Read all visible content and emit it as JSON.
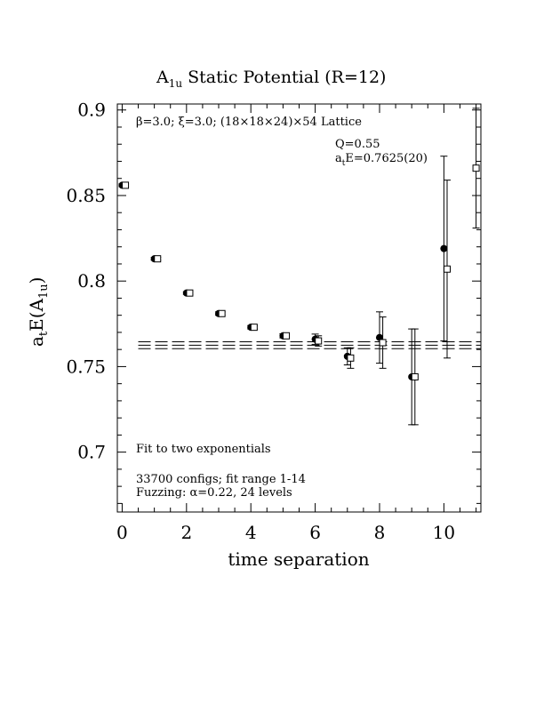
{
  "chart_data": {
    "type": "scatter",
    "title": "A1u Static Potential (R=12)",
    "title_parts": {
      "base": "A",
      "sub": "1u",
      "rest": " Static Potential (R=12)"
    },
    "xlabel": "time separation",
    "ylabel_parts": {
      "a": "a",
      "t_sub": "t",
      "E": "E(A",
      "sub": "1u",
      "close": ")"
    },
    "xlim": [
      -0.15,
      11.15
    ],
    "ylim": [
      0.665,
      0.9035
    ],
    "x_ticks": [
      0,
      2,
      4,
      6,
      8,
      10
    ],
    "x_tick_labels": [
      "0",
      "2",
      "4",
      "6",
      "8",
      "10"
    ],
    "y_ticks": [
      0.7,
      0.75,
      0.8,
      0.85,
      0.9
    ],
    "y_tick_labels": [
      "0.7",
      "0.75",
      "0.8",
      "0.85",
      "0.9"
    ],
    "annotations": {
      "lattice": "β=3.0; ξ=3.0; (18×18×24)×54 Lattice",
      "q_value": "Q=0.55",
      "energy_parts": {
        "a": "a",
        "t_sub": "t",
        "rest": "E=0.7625(20)"
      },
      "fit": "Fit to two exponentials",
      "configs": "33700 configs; fit range 1-14",
      "fuzzing": "Fuzzing: α=0.22, 24 levels"
    },
    "fit_band": {
      "center": 0.7625,
      "error": 0.002
    },
    "series": [
      {
        "marker": "filled-circle",
        "points": [
          {
            "x": 0,
            "y": 0.856,
            "err": 0.0008
          },
          {
            "x": 1,
            "y": 0.813,
            "err": 0.0008
          },
          {
            "x": 2,
            "y": 0.793,
            "err": 0.0008
          },
          {
            "x": 3,
            "y": 0.781,
            "err": 0.001
          },
          {
            "x": 4,
            "y": 0.773,
            "err": 0.001
          },
          {
            "x": 5,
            "y": 0.768,
            "err": 0.0012
          },
          {
            "x": 6,
            "y": 0.766,
            "err": 0.003
          },
          {
            "x": 7,
            "y": 0.756,
            "err": 0.005
          },
          {
            "x": 8,
            "y": 0.767,
            "err": 0.015
          },
          {
            "x": 9,
            "y": 0.744,
            "err": 0.028
          },
          {
            "x": 10,
            "y": 0.819,
            "err": 0.054
          }
        ]
      },
      {
        "marker": "open-square",
        "points": [
          {
            "x": 0.1,
            "y": 0.856,
            "err": 0.0008
          },
          {
            "x": 1.1,
            "y": 0.813,
            "err": 0.0008
          },
          {
            "x": 2.1,
            "y": 0.793,
            "err": 0.0008
          },
          {
            "x": 3.1,
            "y": 0.781,
            "err": 0.001
          },
          {
            "x": 4.1,
            "y": 0.773,
            "err": 0.001
          },
          {
            "x": 5.1,
            "y": 0.768,
            "err": 0.0012
          },
          {
            "x": 6.1,
            "y": 0.765,
            "err": 0.003
          },
          {
            "x": 7.1,
            "y": 0.755,
            "err": 0.006
          },
          {
            "x": 8.1,
            "y": 0.764,
            "err": 0.015
          },
          {
            "x": 9.1,
            "y": 0.744,
            "err": 0.028
          },
          {
            "x": 10.1,
            "y": 0.807,
            "err": 0.052
          },
          {
            "x": 11,
            "y": 0.866,
            "err": 0.035
          }
        ]
      }
    ]
  }
}
